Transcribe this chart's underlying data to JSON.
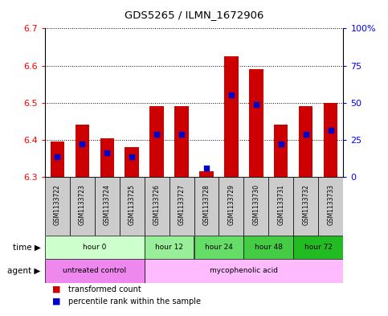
{
  "title": "GDS5265 / ILMN_1672906",
  "samples": [
    "GSM1133722",
    "GSM1133723",
    "GSM1133724",
    "GSM1133725",
    "GSM1133726",
    "GSM1133727",
    "GSM1133728",
    "GSM1133729",
    "GSM1133730",
    "GSM1133731",
    "GSM1133732",
    "GSM1133733"
  ],
  "bar_tops": [
    6.395,
    6.44,
    6.405,
    6.38,
    6.49,
    6.49,
    6.315,
    6.625,
    6.59,
    6.44,
    6.49,
    6.5
  ],
  "bar_bottom": 6.3,
  "blue_dot_y": [
    6.355,
    6.39,
    6.365,
    6.355,
    6.415,
    6.415,
    6.325,
    6.52,
    6.495,
    6.39,
    6.415,
    6.425
  ],
  "ylim_left": [
    6.3,
    6.7
  ],
  "ylim_right": [
    0,
    100
  ],
  "yticks_left": [
    6.3,
    6.4,
    6.5,
    6.6,
    6.7
  ],
  "yticks_right": [
    0,
    25,
    50,
    75,
    100
  ],
  "ytick_labels_right": [
    "0",
    "25",
    "50",
    "75",
    "100%"
  ],
  "bar_color": "#cc0000",
  "dot_color": "#0000cc",
  "time_groups": [
    {
      "label": "hour 0",
      "start": 0,
      "end": 3,
      "color": "#ccffcc"
    },
    {
      "label": "hour 12",
      "start": 4,
      "end": 5,
      "color": "#99ee99"
    },
    {
      "label": "hour 24",
      "start": 6,
      "end": 7,
      "color": "#66dd66"
    },
    {
      "label": "hour 48",
      "start": 8,
      "end": 9,
      "color": "#44cc44"
    },
    {
      "label": "hour 72",
      "start": 10,
      "end": 11,
      "color": "#22bb22"
    }
  ],
  "agent_groups": [
    {
      "label": "untreated control",
      "start": 0,
      "end": 3,
      "color": "#ee88ee"
    },
    {
      "label": "mycophenolic acid",
      "start": 4,
      "end": 11,
      "color": "#ffbbff"
    }
  ],
  "xlabel_time": "time",
  "xlabel_agent": "agent",
  "legend_items": [
    {
      "label": "transformed count",
      "color": "#cc0000"
    },
    {
      "label": "percentile rank within the sample",
      "color": "#0000cc"
    }
  ],
  "bg_color": "#ffffff",
  "sample_area_bg": "#cccccc",
  "bar_width": 0.55
}
